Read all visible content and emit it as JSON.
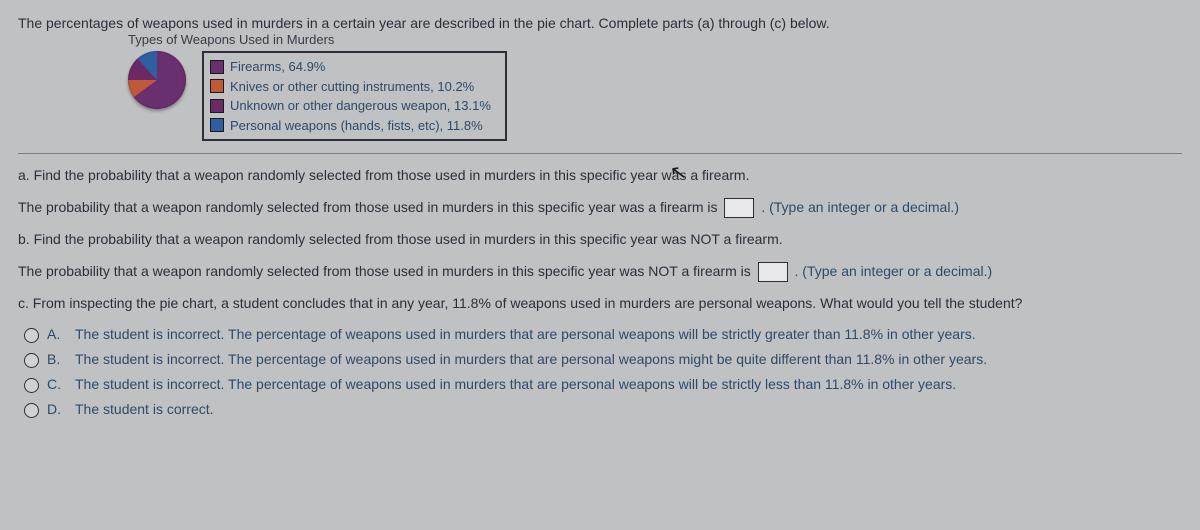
{
  "intro": "The percentages of weapons used in murders in a certain year are described in the pie chart. Complete parts (a) through (c) below.",
  "subtitle": "Types of Weapons Used in Murders",
  "pie": {
    "type": "pie",
    "slices": [
      {
        "label": "Firearms, 64.9%",
        "value": 64.9,
        "color": "#6a2f6e"
      },
      {
        "label": "Knives or other cutting instruments, 10.2%",
        "value": 10.2,
        "color": "#c0593a"
      },
      {
        "label": "Unknown or other dangerous weapon, 13.1%",
        "value": 13.1,
        "color": "#6b2a66"
      },
      {
        "label": "Personal weapons (hands, fists, etc), 11.8%",
        "value": 11.8,
        "color": "#2f5fa0"
      }
    ],
    "background_color": "#bfc1c2",
    "border_color": "#2d2e3a",
    "label_fontsize": 13
  },
  "parts": {
    "a_prompt": "a. Find the probability that a weapon randomly selected from those used in murders in this specific year was a firearm.",
    "a_stem_before": "The probability that a weapon randomly selected from those used in murders in this specific year was a firearm is ",
    "a_hint": ". (Type an integer or a decimal.)",
    "b_prompt": "b. Find the probability that a weapon randomly selected from those used in murders in this specific year was NOT a firearm.",
    "b_stem_before": "The probability that a weapon randomly selected from those used in murders in this specific year was NOT a firearm is ",
    "b_hint": ". (Type an integer or a decimal.)",
    "c_prompt": "c. From inspecting the pie chart, a student concludes that in any year, 11.8% of weapons used in murders are personal weapons. What would you tell the student?",
    "c_options": [
      {
        "letter": "A.",
        "text": "The student is incorrect. The percentage of weapons used in murders that are personal weapons will be strictly greater than 11.8% in other years."
      },
      {
        "letter": "B.",
        "text": "The student is incorrect. The percentage of weapons used in murders that are personal weapons might be quite different than 11.8% in other years."
      },
      {
        "letter": "C.",
        "text": "The student is incorrect. The percentage of weapons used in murders that are personal weapons will be strictly less than 11.8% in other years."
      },
      {
        "letter": "D.",
        "text": "The student is correct."
      }
    ]
  }
}
